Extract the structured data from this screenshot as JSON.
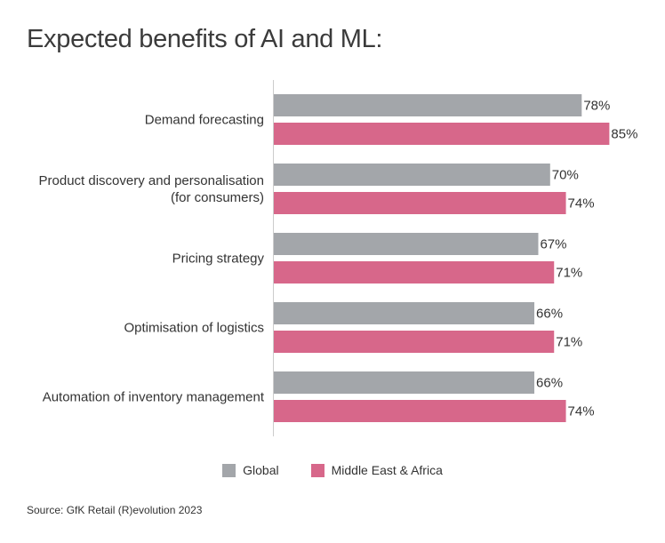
{
  "title": "Expected benefits of AI and ML:",
  "source": "Source: GfK Retail (R)evolution 2023",
  "colors": {
    "global": "#a3a6aa",
    "mea": "#d7678a",
    "axis": "#cccccc"
  },
  "chart_data": {
    "type": "bar",
    "orientation": "horizontal",
    "title": "Expected benefits of AI and ML:",
    "categories": [
      [
        "Demand forecasting"
      ],
      [
        "Product discovery and personalisation",
        "(for consumers)"
      ],
      [
        "Pricing strategy"
      ],
      [
        "Optimisation of logistics"
      ],
      [
        "Automation of inventory management"
      ]
    ],
    "series": [
      {
        "name": "Global",
        "values": [
          78,
          70,
          67,
          66,
          66
        ],
        "color": "#a3a6aa"
      },
      {
        "name": "Middle East & Africa",
        "values": [
          85,
          74,
          71,
          71,
          74
        ],
        "color": "#d7678a"
      }
    ],
    "value_suffix": "%",
    "xlim": [
      0,
      100
    ],
    "grid": false,
    "legend_position": "bottom-center"
  }
}
